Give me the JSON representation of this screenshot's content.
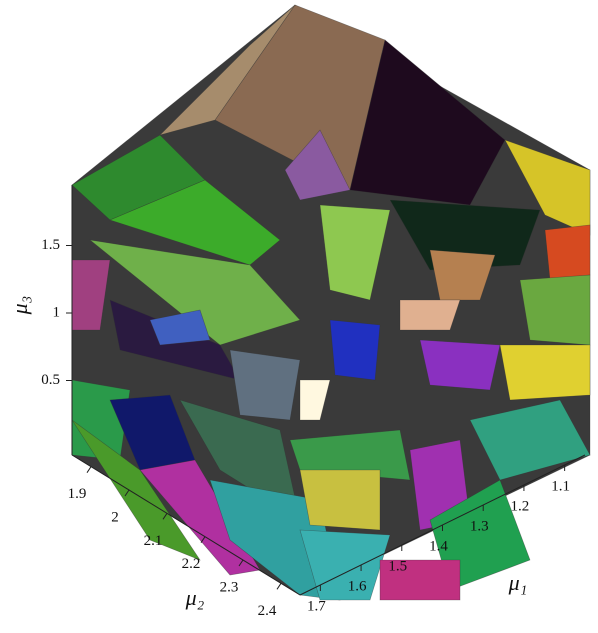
{
  "chart_data": {
    "type": "polytope3d",
    "xlabel": "μ₁",
    "ylabel": "μ₂",
    "zlabel": "μ₃",
    "xlim": [
      1.05,
      1.75
    ],
    "xticks": [
      1.1,
      1.2,
      1.3,
      1.4,
      1.5,
      1.6,
      1.7
    ],
    "ylim": [
      1.85,
      2.45
    ],
    "yticks": [
      1.9,
      2,
      2.1,
      2.2,
      2.3,
      2.4
    ],
    "zlim": [
      0,
      2
    ],
    "zticks": [
      0.5,
      1,
      1.5
    ]
  }
}
